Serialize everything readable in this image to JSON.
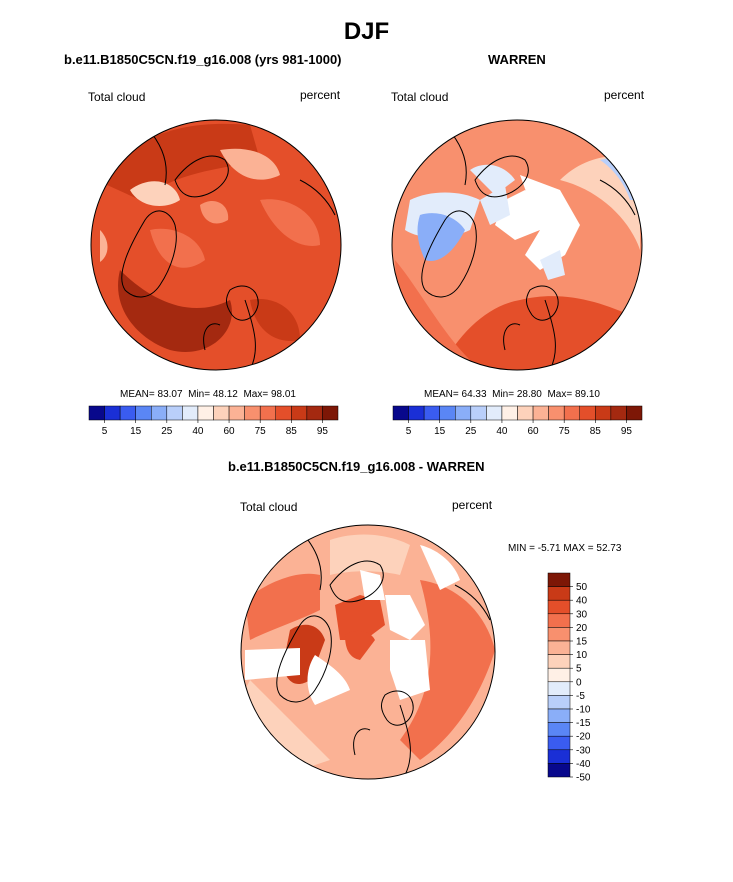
{
  "main_title": "DJF",
  "colors": {
    "land_outline": "#000000",
    "background": "#ffffff",
    "colorbar_seq": [
      "#08088c",
      "#1a2fd6",
      "#3a5cf0",
      "#5a86f5",
      "#8aaef8",
      "#b9cffa",
      "#e2ecfb",
      "#fff0e6",
      "#fdd2bb",
      "#fbb295",
      "#f8906e",
      "#f2704d",
      "#e44f2a",
      "#c93a17",
      "#a42910",
      "#7d1706"
    ],
    "colorbar_div": [
      "#08088c",
      "#1a2fd6",
      "#3a5cf0",
      "#5a86f5",
      "#8aaef8",
      "#b9cffa",
      "#e2ecfb",
      "#fff0e6",
      "#fdd2bb",
      "#fbb295",
      "#f8906e",
      "#f2704d",
      "#e44f2a",
      "#c93a17",
      "#7d1706"
    ]
  },
  "chart_data": [
    {
      "type": "heatmap",
      "projection": "north-polar-stereographic",
      "title": "b.e11.B1850C5CN.f19_g16.008 (yrs 981-1000)",
      "left_label": "Total cloud",
      "right_label": "percent",
      "stats": {
        "mean_label": "MEAN=",
        "mean": "83.07",
        "min_label": "Min=",
        "min": "48.12",
        "max_label": "Max=",
        "max": "98.01"
      },
      "colorbar_ticks": [
        "5",
        "15",
        "25",
        "40",
        "60",
        "75",
        "85",
        "95"
      ],
      "dominant_level": "80-90"
    },
    {
      "type": "heatmap",
      "projection": "north-polar-stereographic",
      "title": "WARREN",
      "left_label": "Total cloud",
      "right_label": "percent",
      "stats": {
        "mean_label": "MEAN=",
        "mean": "64.33",
        "min_label": "Min=",
        "min": "28.80",
        "max_label": "Max=",
        "max": "89.10"
      },
      "colorbar_ticks": [
        "5",
        "15",
        "25",
        "40",
        "60",
        "75",
        "85",
        "95"
      ],
      "dominant_level": "55-75"
    },
    {
      "type": "heatmap",
      "projection": "north-polar-stereographic",
      "title": "b.e11.B1850C5CN.f19_g16.008 - WARREN",
      "left_label": "Total cloud",
      "right_label": "percent",
      "stats": {
        "min_label": "MIN =",
        "min": "-5.71",
        "max_label": "MAX =",
        "max": "52.73"
      },
      "colorbar_ticks": [
        "50",
        "40",
        "30",
        "20",
        "15",
        "10",
        "5",
        "0",
        "-5",
        "-10",
        "-15",
        "-20",
        "-30",
        "-40",
        "-50"
      ],
      "dominant_level": "10-30"
    }
  ]
}
